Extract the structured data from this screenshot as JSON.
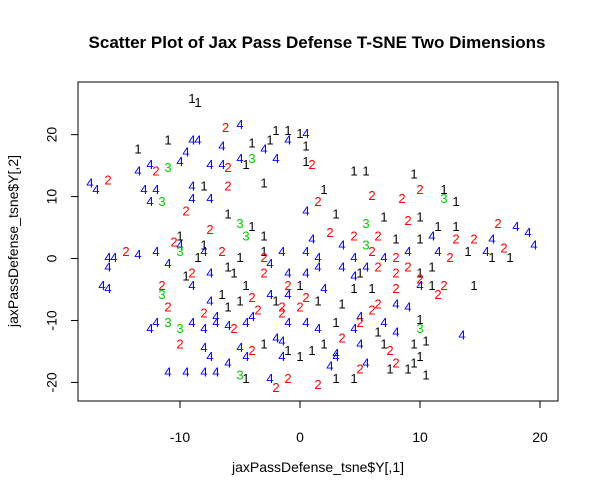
{
  "chart_data": {
    "type": "scatter",
    "title": "Scatter Plot of Jax Pass Defense T-SNE Two Dimensions",
    "xlabel": "jaxPassDefense_tsne$Y[,1]",
    "ylabel": "jaxPassDefense_tsne$Y[,2]",
    "xlim": [
      -18.5,
      21.5
    ],
    "ylim": [
      -23,
      28.5
    ],
    "xticks": [
      -10,
      0,
      10,
      20
    ],
    "yticks": [
      -20,
      -10,
      0,
      10,
      20
    ],
    "grid": false,
    "legend": "none",
    "label_colors": {
      "1": "#000000",
      "2": "#ff0000",
      "3": "#00cd00",
      "4": "#0000ff"
    },
    "points": [
      {
        "x": -9.0,
        "y": 25.7,
        "label": "1"
      },
      {
        "x": -8.5,
        "y": 25.0,
        "label": "1"
      },
      {
        "x": -6.2,
        "y": 21.0,
        "label": "2"
      },
      {
        "x": -5.0,
        "y": 21.5,
        "label": "4"
      },
      {
        "x": -2.0,
        "y": 20.5,
        "label": "1"
      },
      {
        "x": -1.0,
        "y": 20.5,
        "label": "1"
      },
      {
        "x": 0.0,
        "y": 20.0,
        "label": "1"
      },
      {
        "x": 0.5,
        "y": 20.0,
        "label": "4"
      },
      {
        "x": -11.0,
        "y": 19.0,
        "label": "1"
      },
      {
        "x": -9.0,
        "y": 19.0,
        "label": "4"
      },
      {
        "x": -8.5,
        "y": 19.0,
        "label": "4"
      },
      {
        "x": -4.0,
        "y": 18.5,
        "label": "1"
      },
      {
        "x": -2.5,
        "y": 19.0,
        "label": "1"
      },
      {
        "x": -1.0,
        "y": 19.0,
        "label": "4"
      },
      {
        "x": -13.5,
        "y": 17.5,
        "label": "1"
      },
      {
        "x": -9.5,
        "y": 17.0,
        "label": "4"
      },
      {
        "x": -6.5,
        "y": 18.0,
        "label": "4"
      },
      {
        "x": -3.0,
        "y": 17.5,
        "label": "4"
      },
      {
        "x": 0.5,
        "y": 18.0,
        "label": "1"
      },
      {
        "x": -5.0,
        "y": 16.0,
        "label": "4"
      },
      {
        "x": -4.0,
        "y": 16.0,
        "label": "3"
      },
      {
        "x": -2.0,
        "y": 16.0,
        "label": "4"
      },
      {
        "x": -12.5,
        "y": 15.0,
        "label": "4"
      },
      {
        "x": -10.0,
        "y": 15.5,
        "label": "4"
      },
      {
        "x": -7.5,
        "y": 15.0,
        "label": "4"
      },
      {
        "x": -6.5,
        "y": 15.0,
        "label": "4"
      },
      {
        "x": -6.0,
        "y": 14.5,
        "label": "2"
      },
      {
        "x": -4.5,
        "y": 15.0,
        "label": "1"
      },
      {
        "x": 0.5,
        "y": 15.5,
        "label": "1"
      },
      {
        "x": 1.0,
        "y": 15.0,
        "label": "2"
      },
      {
        "x": 4.5,
        "y": 14.0,
        "label": "1"
      },
      {
        "x": 5.5,
        "y": 14.0,
        "label": "1"
      },
      {
        "x": -13.5,
        "y": 14.0,
        "label": "4"
      },
      {
        "x": -12.0,
        "y": 14.0,
        "label": "2"
      },
      {
        "x": -11.0,
        "y": 14.5,
        "label": "3"
      },
      {
        "x": -16.0,
        "y": 12.5,
        "label": "2"
      },
      {
        "x": 9.5,
        "y": 13.5,
        "label": "1"
      },
      {
        "x": -17.5,
        "y": 12.0,
        "label": "4"
      },
      {
        "x": -17.0,
        "y": 11.0,
        "label": "4"
      },
      {
        "x": -13.0,
        "y": 11.0,
        "label": "4"
      },
      {
        "x": -12.0,
        "y": 11.0,
        "label": "4"
      },
      {
        "x": -9.0,
        "y": 11.5,
        "label": "4"
      },
      {
        "x": -8.0,
        "y": 11.5,
        "label": "1"
      },
      {
        "x": -6.0,
        "y": 11.5,
        "label": "2"
      },
      {
        "x": -3.0,
        "y": 12.0,
        "label": "1"
      },
      {
        "x": 2.0,
        "y": 11.0,
        "label": "1"
      },
      {
        "x": 10.0,
        "y": 11.0,
        "label": "2"
      },
      {
        "x": 12.0,
        "y": 11.0,
        "label": "1"
      },
      {
        "x": -12.5,
        "y": 9.0,
        "label": "4"
      },
      {
        "x": -11.5,
        "y": 9.0,
        "label": "3"
      },
      {
        "x": -9.0,
        "y": 9.5,
        "label": "4"
      },
      {
        "x": -7.5,
        "y": 9.5,
        "label": "4"
      },
      {
        "x": 1.5,
        "y": 9.0,
        "label": "2"
      },
      {
        "x": 6.0,
        "y": 10.0,
        "label": "2"
      },
      {
        "x": 8.5,
        "y": 9.5,
        "label": "2"
      },
      {
        "x": 12.0,
        "y": 9.5,
        "label": "3"
      },
      {
        "x": 13.0,
        "y": 9.0,
        "label": "1"
      },
      {
        "x": -9.5,
        "y": 7.5,
        "label": "2"
      },
      {
        "x": -6.0,
        "y": 7.0,
        "label": "1"
      },
      {
        "x": 0.5,
        "y": 7.5,
        "label": "4"
      },
      {
        "x": 3.0,
        "y": 7.0,
        "label": "1"
      },
      {
        "x": 7.0,
        "y": 6.5,
        "label": "1"
      },
      {
        "x": 9.0,
        "y": 6.0,
        "label": "2"
      },
      {
        "x": 10.0,
        "y": 6.5,
        "label": "1"
      },
      {
        "x": 11.5,
        "y": 5.0,
        "label": "1"
      },
      {
        "x": 13.0,
        "y": 5.0,
        "label": "1"
      },
      {
        "x": 16.5,
        "y": 5.5,
        "label": "2"
      },
      {
        "x": 18.0,
        "y": 5.0,
        "label": "4"
      },
      {
        "x": 19.0,
        "y": 4.0,
        "label": "4"
      },
      {
        "x": -5.0,
        "y": 5.5,
        "label": "3"
      },
      {
        "x": -4.0,
        "y": 5.0,
        "label": "1"
      },
      {
        "x": 5.5,
        "y": 5.5,
        "label": "3"
      },
      {
        "x": -10.0,
        "y": 3.5,
        "label": "1"
      },
      {
        "x": -7.5,
        "y": 4.5,
        "label": "2"
      },
      {
        "x": -4.5,
        "y": 3.5,
        "label": "3"
      },
      {
        "x": -3.0,
        "y": 3.5,
        "label": "1"
      },
      {
        "x": 1.0,
        "y": 3.0,
        "label": "4"
      },
      {
        "x": 2.5,
        "y": 4.0,
        "label": "2"
      },
      {
        "x": 4.5,
        "y": 3.5,
        "label": "2"
      },
      {
        "x": 6.5,
        "y": 3.5,
        "label": "2"
      },
      {
        "x": 8.0,
        "y": 3.0,
        "label": "1"
      },
      {
        "x": 10.0,
        "y": 3.0,
        "label": "1"
      },
      {
        "x": 11.0,
        "y": 3.5,
        "label": "4"
      },
      {
        "x": 13.0,
        "y": 3.0,
        "label": "2"
      },
      {
        "x": 14.5,
        "y": 3.0,
        "label": "2"
      },
      {
        "x": 16.0,
        "y": 3.0,
        "label": "4"
      },
      {
        "x": -10.5,
        "y": 2.5,
        "label": "2"
      },
      {
        "x": -10.0,
        "y": 2.0,
        "label": "4"
      },
      {
        "x": -8.0,
        "y": 2.0,
        "label": "1"
      },
      {
        "x": 3.5,
        "y": 2.0,
        "label": "4"
      },
      {
        "x": 5.5,
        "y": 2.0,
        "label": "3"
      },
      {
        "x": 19.5,
        "y": 2.0,
        "label": "4"
      },
      {
        "x": 17.0,
        "y": 1.5,
        "label": "2"
      },
      {
        "x": -14.5,
        "y": 1.0,
        "label": "2"
      },
      {
        "x": -12.0,
        "y": 1.0,
        "label": "4"
      },
      {
        "x": -10.0,
        "y": 1.0,
        "label": "3"
      },
      {
        "x": -8.0,
        "y": 1.0,
        "label": "4"
      },
      {
        "x": -6.5,
        "y": 1.0,
        "label": "2"
      },
      {
        "x": -3.0,
        "y": 1.0,
        "label": "1"
      },
      {
        "x": -1.5,
        "y": 1.0,
        "label": "4"
      },
      {
        "x": 0.5,
        "y": 1.0,
        "label": "4"
      },
      {
        "x": 6.0,
        "y": 1.0,
        "label": "2"
      },
      {
        "x": 9.0,
        "y": 1.0,
        "label": "4"
      },
      {
        "x": 11.5,
        "y": 1.0,
        "label": "4"
      },
      {
        "x": 14.0,
        "y": 1.0,
        "label": "1"
      },
      {
        "x": 15.5,
        "y": 1.0,
        "label": "4"
      },
      {
        "x": -16.0,
        "y": 0.0,
        "label": "4"
      },
      {
        "x": -15.5,
        "y": 0.0,
        "label": "4"
      },
      {
        "x": -13.5,
        "y": 0.5,
        "label": "4"
      },
      {
        "x": -8.5,
        "y": 0.0,
        "label": "1"
      },
      {
        "x": -5.0,
        "y": 0.0,
        "label": "1"
      },
      {
        "x": -3.0,
        "y": 0.0,
        "label": "2"
      },
      {
        "x": 1.5,
        "y": 0.0,
        "label": "4"
      },
      {
        "x": 4.5,
        "y": 0.0,
        "label": "4"
      },
      {
        "x": 7.0,
        "y": 0.0,
        "label": "4"
      },
      {
        "x": 8.0,
        "y": 0.0,
        "label": "2"
      },
      {
        "x": 12.5,
        "y": 0.0,
        "label": "2"
      },
      {
        "x": 16.0,
        "y": 0.0,
        "label": "1"
      },
      {
        "x": 17.5,
        "y": 0.0,
        "label": "1"
      },
      {
        "x": -16.0,
        "y": -1.5,
        "label": "4"
      },
      {
        "x": -11.0,
        "y": -1.0,
        "label": "4"
      },
      {
        "x": -6.0,
        "y": -1.5,
        "label": "1"
      },
      {
        "x": -2.5,
        "y": -1.0,
        "label": "4"
      },
      {
        "x": 1.5,
        "y": -1.5,
        "label": "4"
      },
      {
        "x": 3.5,
        "y": -1.5,
        "label": "4"
      },
      {
        "x": 5.5,
        "y": -1.5,
        "label": "4"
      },
      {
        "x": 6.5,
        "y": -1.5,
        "label": "2"
      },
      {
        "x": 9.0,
        "y": -1.5,
        "label": "2"
      },
      {
        "x": 11.0,
        "y": -1.5,
        "label": "1"
      },
      {
        "x": -9.0,
        "y": -2.5,
        "label": "2"
      },
      {
        "x": -7.5,
        "y": -2.5,
        "label": "4"
      },
      {
        "x": -5.5,
        "y": -2.5,
        "label": "1"
      },
      {
        "x": -3.0,
        "y": -2.5,
        "label": "2"
      },
      {
        "x": -1.0,
        "y": -2.5,
        "label": "4"
      },
      {
        "x": 0.5,
        "y": -2.5,
        "label": "4"
      },
      {
        "x": 5.0,
        "y": -2.5,
        "label": "1"
      },
      {
        "x": 8.0,
        "y": -2.5,
        "label": "2"
      },
      {
        "x": 10.0,
        "y": -2.5,
        "label": "1"
      },
      {
        "x": -9.5,
        "y": -3.0,
        "label": "1"
      },
      {
        "x": 4.5,
        "y": -3.0,
        "label": "4"
      },
      {
        "x": 10.0,
        "y": -3.5,
        "label": "2"
      },
      {
        "x": 11.0,
        "y": -4.5,
        "label": "1"
      },
      {
        "x": -16.5,
        "y": -4.5,
        "label": "4"
      },
      {
        "x": -16.0,
        "y": -5.0,
        "label": "4"
      },
      {
        "x": -11.5,
        "y": -4.5,
        "label": "2"
      },
      {
        "x": -9.0,
        "y": -4.5,
        "label": "4"
      },
      {
        "x": -4.5,
        "y": -4.5,
        "label": "1"
      },
      {
        "x": -1.0,
        "y": -4.5,
        "label": "2"
      },
      {
        "x": 0.0,
        "y": -4.5,
        "label": "1"
      },
      {
        "x": 2.0,
        "y": -5.0,
        "label": "4"
      },
      {
        "x": 4.5,
        "y": -5.0,
        "label": "1"
      },
      {
        "x": 6.0,
        "y": -5.0,
        "label": "1"
      },
      {
        "x": 8.0,
        "y": -5.0,
        "label": "2"
      },
      {
        "x": 10.0,
        "y": -4.5,
        "label": "4"
      },
      {
        "x": 12.0,
        "y": -4.5,
        "label": "2"
      },
      {
        "x": 14.5,
        "y": -4.5,
        "label": "1"
      },
      {
        "x": -11.5,
        "y": -6.0,
        "label": "3"
      },
      {
        "x": -6.5,
        "y": -6.0,
        "label": "1"
      },
      {
        "x": -4.0,
        "y": -6.5,
        "label": "2"
      },
      {
        "x": -2.5,
        "y": -6.0,
        "label": "4"
      },
      {
        "x": -1.0,
        "y": -6.0,
        "label": "4"
      },
      {
        "x": 0.5,
        "y": -6.5,
        "label": "2"
      },
      {
        "x": 11.5,
        "y": -6.0,
        "label": "2"
      },
      {
        "x": -7.5,
        "y": -7.0,
        "label": "4"
      },
      {
        "x": -5.0,
        "y": -7.0,
        "label": "1"
      },
      {
        "x": -2.0,
        "y": -7.0,
        "label": "1"
      },
      {
        "x": 1.5,
        "y": -7.0,
        "label": "1"
      },
      {
        "x": 3.5,
        "y": -7.5,
        "label": "1"
      },
      {
        "x": 6.5,
        "y": -7.5,
        "label": "2"
      },
      {
        "x": 8.0,
        "y": -7.5,
        "label": "4"
      },
      {
        "x": -11.0,
        "y": -8.0,
        "label": "2"
      },
      {
        "x": -6.0,
        "y": -8.0,
        "label": "1"
      },
      {
        "x": -3.5,
        "y": -8.5,
        "label": "2"
      },
      {
        "x": -1.5,
        "y": -8.0,
        "label": "2"
      },
      {
        "x": 0.0,
        "y": -8.0,
        "label": "2"
      },
      {
        "x": 6.0,
        "y": -8.5,
        "label": "2"
      },
      {
        "x": 9.0,
        "y": -8.0,
        "label": "4"
      },
      {
        "x": -8.0,
        "y": -9.0,
        "label": "2"
      },
      {
        "x": -7.0,
        "y": -9.5,
        "label": "4"
      },
      {
        "x": -4.0,
        "y": -9.5,
        "label": "4"
      },
      {
        "x": -1.5,
        "y": -9.0,
        "label": "2"
      },
      {
        "x": 5.0,
        "y": -9.5,
        "label": "4"
      },
      {
        "x": 10.0,
        "y": -10.0,
        "label": "1"
      },
      {
        "x": -12.0,
        "y": -10.5,
        "label": "4"
      },
      {
        "x": -11.0,
        "y": -10.5,
        "label": "3"
      },
      {
        "x": -9.0,
        "y": -10.5,
        "label": "4"
      },
      {
        "x": -7.0,
        "y": -10.5,
        "label": "4"
      },
      {
        "x": -6.0,
        "y": -11.0,
        "label": "4"
      },
      {
        "x": -4.5,
        "y": -10.5,
        "label": "4"
      },
      {
        "x": -1.0,
        "y": -10.5,
        "label": "4"
      },
      {
        "x": 0.5,
        "y": -10.5,
        "label": "4"
      },
      {
        "x": 3.0,
        "y": -10.5,
        "label": "1"
      },
      {
        "x": 5.0,
        "y": -10.5,
        "label": "2"
      },
      {
        "x": 7.0,
        "y": -10.5,
        "label": "4"
      },
      {
        "x": -12.5,
        "y": -11.5,
        "label": "4"
      },
      {
        "x": -10.0,
        "y": -11.5,
        "label": "3"
      },
      {
        "x": -8.0,
        "y": -11.5,
        "label": "4"
      },
      {
        "x": -5.5,
        "y": -11.5,
        "label": "2"
      },
      {
        "x": 1.5,
        "y": -11.5,
        "label": "4"
      },
      {
        "x": 4.5,
        "y": -11.5,
        "label": "4"
      },
      {
        "x": 6.5,
        "y": -12.0,
        "label": "1"
      },
      {
        "x": 8.0,
        "y": -12.0,
        "label": "4"
      },
      {
        "x": 10.0,
        "y": -11.5,
        "label": "3"
      },
      {
        "x": 13.5,
        "y": -12.5,
        "label": "4"
      },
      {
        "x": -2.0,
        "y": -13.0,
        "label": "4"
      },
      {
        "x": 3.5,
        "y": -13.0,
        "label": "2"
      },
      {
        "x": -10.0,
        "y": -14.0,
        "label": "2"
      },
      {
        "x": -8.0,
        "y": -14.5,
        "label": "4"
      },
      {
        "x": -5.0,
        "y": -14.5,
        "label": "4"
      },
      {
        "x": -3.0,
        "y": -14.0,
        "label": "1"
      },
      {
        "x": -1.5,
        "y": -13.5,
        "label": "4"
      },
      {
        "x": 2.0,
        "y": -14.0,
        "label": "1"
      },
      {
        "x": 5.0,
        "y": -14.0,
        "label": "4"
      },
      {
        "x": 7.0,
        "y": -14.0,
        "label": "1"
      },
      {
        "x": 9.5,
        "y": -14.0,
        "label": "1"
      },
      {
        "x": 10.5,
        "y": -13.5,
        "label": "1"
      },
      {
        "x": -4.0,
        "y": -15.0,
        "label": "2"
      },
      {
        "x": -1.0,
        "y": -15.0,
        "label": "1"
      },
      {
        "x": 1.0,
        "y": -15.0,
        "label": "1"
      },
      {
        "x": 3.0,
        "y": -15.5,
        "label": "4"
      },
      {
        "x": 7.5,
        "y": -15.0,
        "label": "2"
      },
      {
        "x": -7.5,
        "y": -16.0,
        "label": "4"
      },
      {
        "x": -4.5,
        "y": -16.0,
        "label": "4"
      },
      {
        "x": -1.5,
        "y": -16.0,
        "label": "4"
      },
      {
        "x": 0.0,
        "y": -16.0,
        "label": "1"
      },
      {
        "x": 3.0,
        "y": -16.0,
        "label": "4"
      },
      {
        "x": 10.0,
        "y": -16.0,
        "label": "1"
      },
      {
        "x": -6.0,
        "y": -17.0,
        "label": "4"
      },
      {
        "x": 5.5,
        "y": -17.0,
        "label": "4"
      },
      {
        "x": 8.0,
        "y": -17.0,
        "label": "2"
      },
      {
        "x": 9.5,
        "y": -17.0,
        "label": "1"
      },
      {
        "x": 2.5,
        "y": -17.5,
        "label": "4"
      },
      {
        "x": 5.0,
        "y": -18.0,
        "label": "2"
      },
      {
        "x": 7.5,
        "y": -18.0,
        "label": "1"
      },
      {
        "x": 9.0,
        "y": -18.0,
        "label": "1"
      },
      {
        "x": -11.0,
        "y": -18.5,
        "label": "4"
      },
      {
        "x": -9.5,
        "y": -18.5,
        "label": "4"
      },
      {
        "x": -8.0,
        "y": -18.5,
        "label": "4"
      },
      {
        "x": -7.0,
        "y": -18.5,
        "label": "4"
      },
      {
        "x": -5.0,
        "y": -19.0,
        "label": "3"
      },
      {
        "x": -4.5,
        "y": -19.5,
        "label": "1"
      },
      {
        "x": -2.5,
        "y": -19.5,
        "label": "4"
      },
      {
        "x": -1.0,
        "y": -19.5,
        "label": "2"
      },
      {
        "x": 3.0,
        "y": -19.5,
        "label": "1"
      },
      {
        "x": 4.5,
        "y": -19.5,
        "label": "1"
      },
      {
        "x": 10.5,
        "y": -19.0,
        "label": "1"
      },
      {
        "x": 1.5,
        "y": -20.5,
        "label": "2"
      },
      {
        "x": -2.0,
        "y": -21.0,
        "label": "2"
      }
    ]
  }
}
